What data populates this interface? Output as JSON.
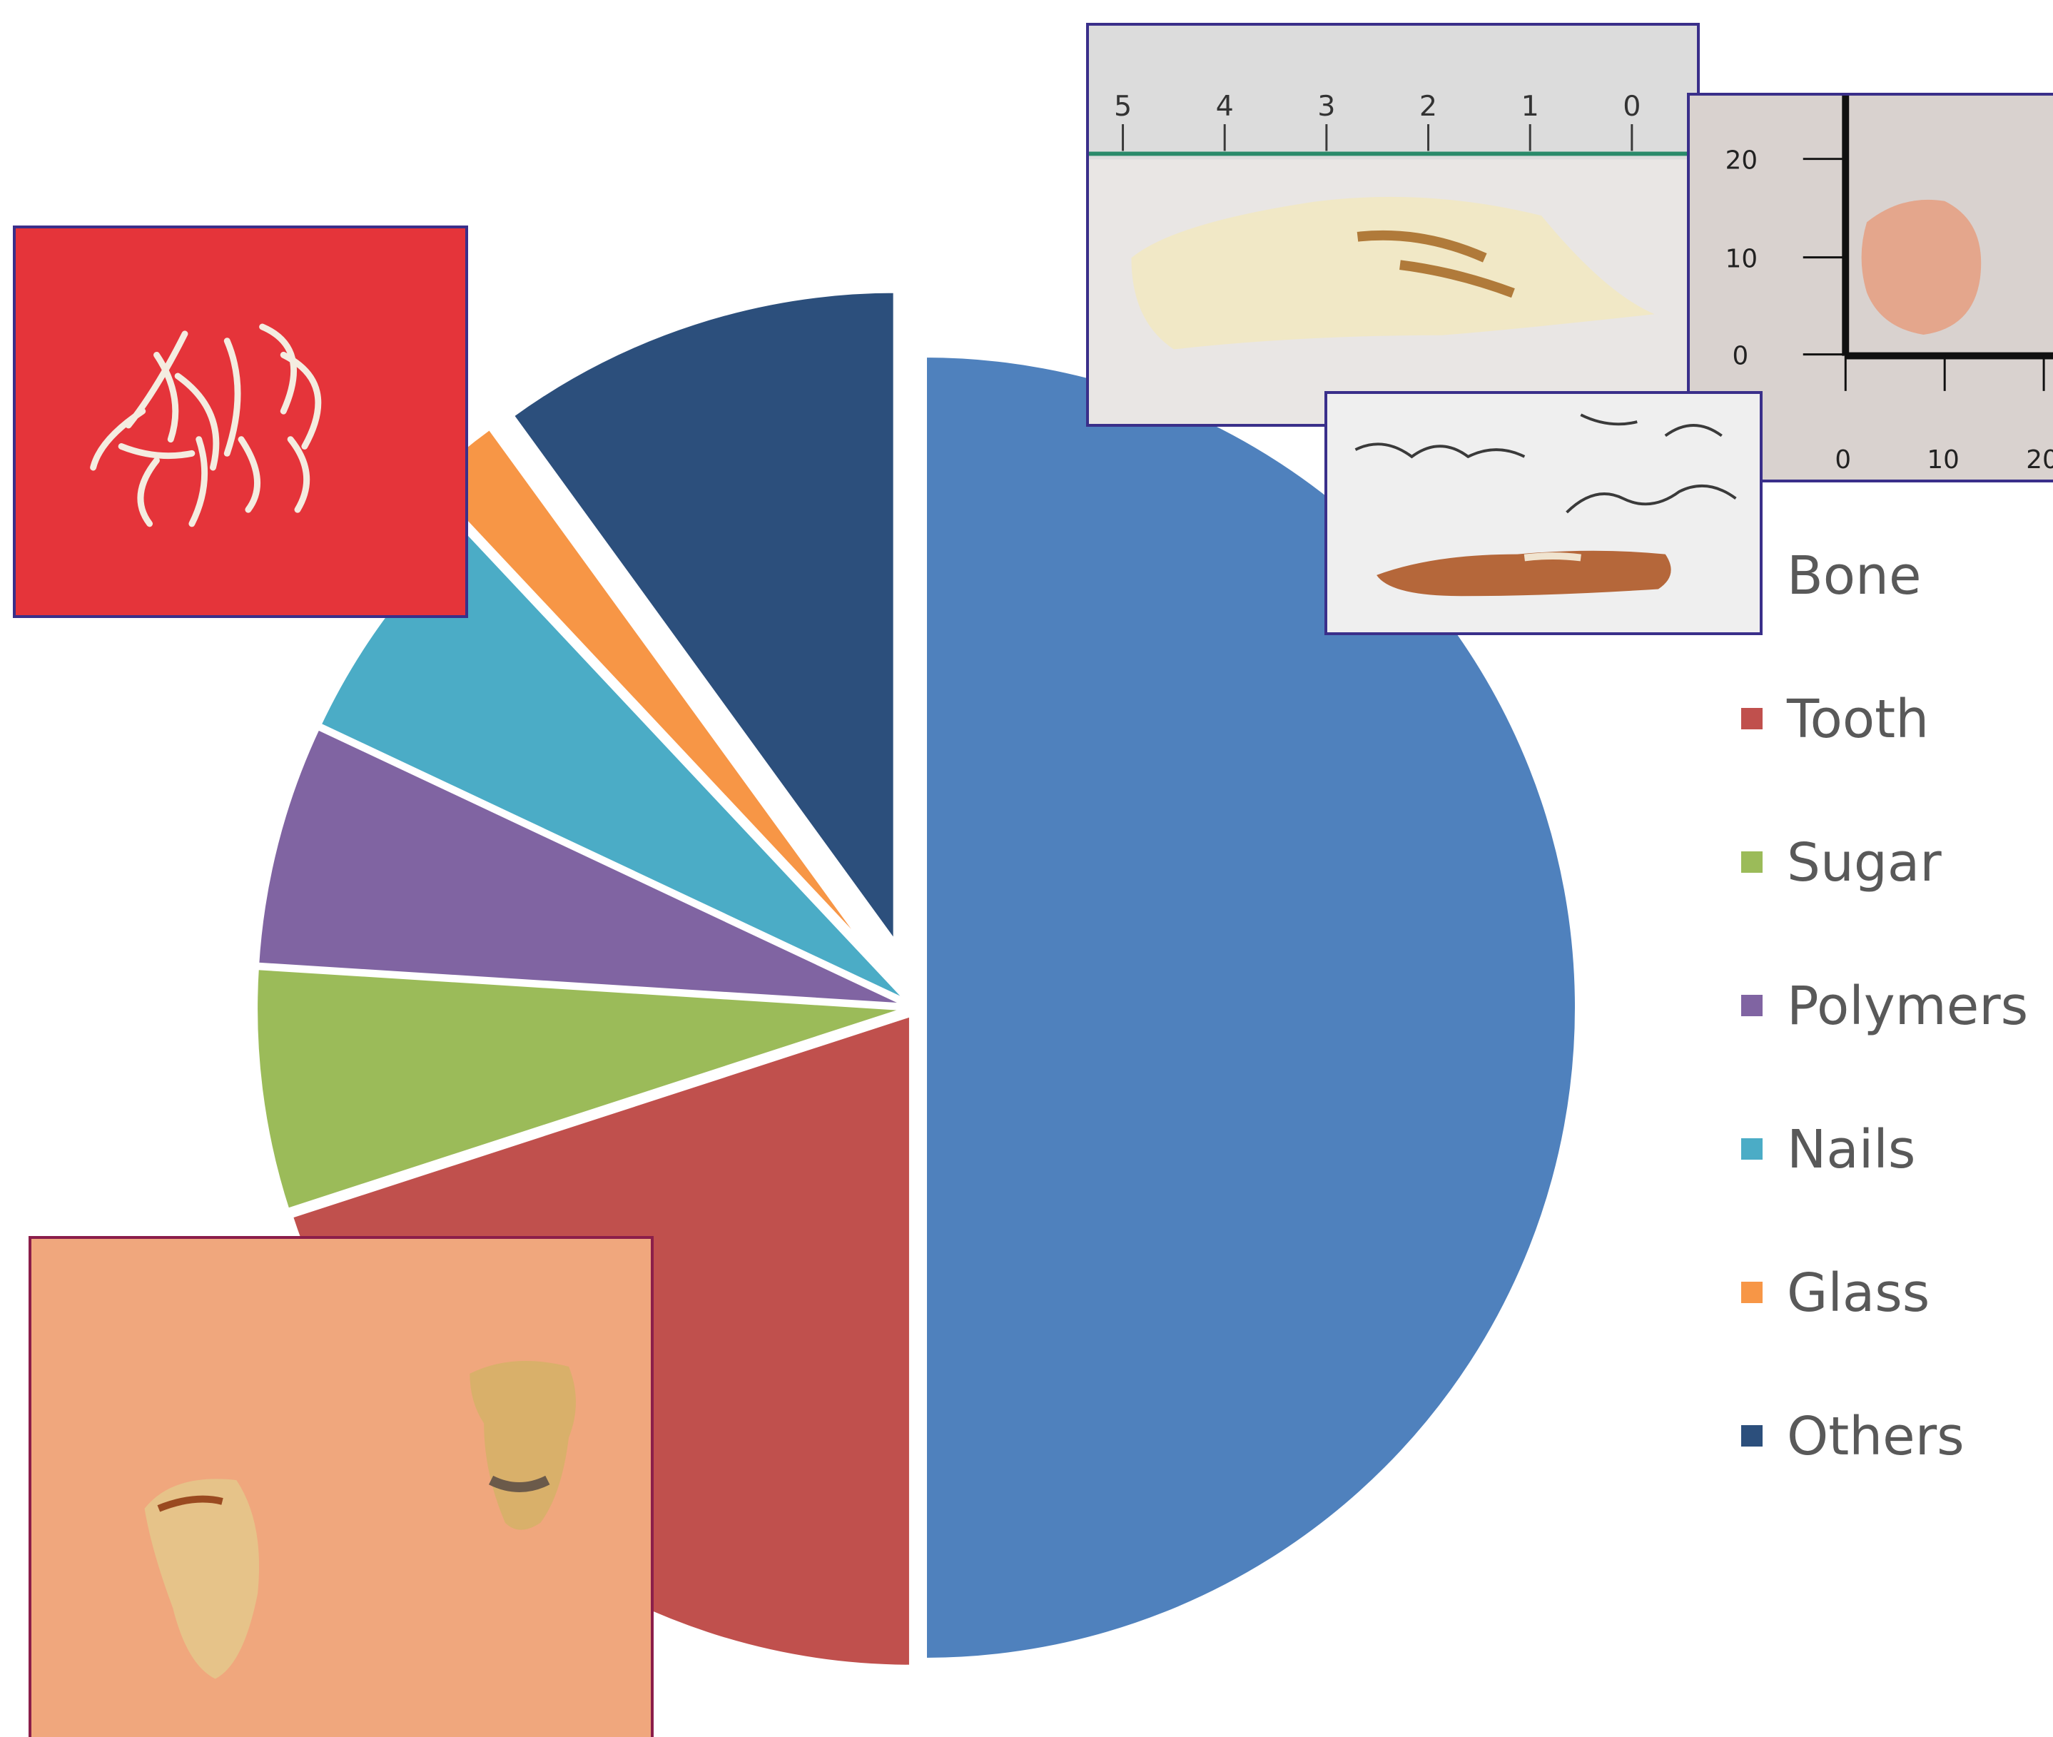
{
  "chart_data": {
    "type": "pie",
    "legend_position": "right",
    "slices": [
      {
        "label": "Bone",
        "value": 50,
        "color": "#4F81BD",
        "exploded": false
      },
      {
        "label": "Tooth",
        "value": 20,
        "color": "#C0504D",
        "exploded": false
      },
      {
        "label": "Sugar",
        "value": 6,
        "color": "#9BBB59",
        "exploded": false
      },
      {
        "label": "Polymers",
        "value": 6,
        "color": "#8064A2",
        "exploded": false
      },
      {
        "label": "Nails",
        "value": 6,
        "color": "#4BACC6",
        "exploded": false
      },
      {
        "label": "Glass",
        "value": 2,
        "color": "#F79646",
        "exploded": true
      },
      {
        "label": "Others",
        "value": 10,
        "color": "#2C4F7C",
        "exploded": true
      }
    ]
  },
  "photos": {
    "ruler_top": {
      "ticks": [
        "5",
        "4",
        "3",
        "2",
        "1",
        "0"
      ]
    },
    "scale_right": {
      "y_ticks": [
        "20",
        "10",
        "0"
      ],
      "x_ticks": [
        "0",
        "10",
        "20"
      ]
    }
  }
}
